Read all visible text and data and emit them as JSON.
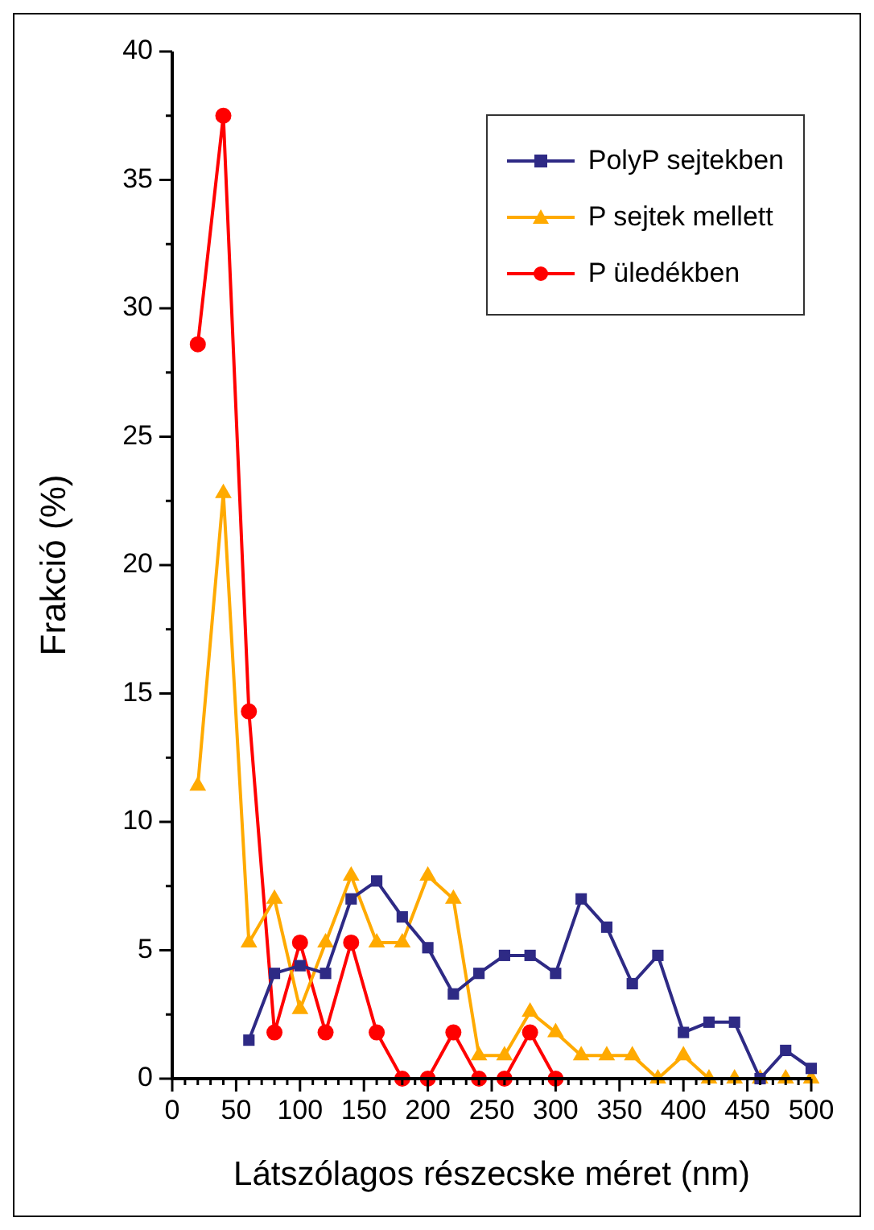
{
  "chart_data": {
    "type": "line",
    "xlabel": "Látszólagos részecske méret (nm)",
    "ylabel": "Frakció (%)",
    "xlim": [
      0,
      500
    ],
    "ylim": [
      0,
      40
    ],
    "xticks": [
      0,
      {
        "value": 10,
        "label": null
      },
      {
        "value": 20,
        "label": null
      },
      {
        "value": 30,
        "label": null
      },
      {
        "value": 40,
        "label": null
      },
      50,
      {
        "value": 60,
        "label": null
      },
      {
        "value": 70,
        "label": null
      },
      {
        "value": 80,
        "label": null
      },
      {
        "value": 90,
        "label": null
      },
      100,
      {
        "value": 110,
        "label": null
      },
      {
        "value": 120,
        "label": null
      },
      {
        "value": 130,
        "label": null
      },
      {
        "value": 140,
        "label": null
      },
      150,
      {
        "value": 160,
        "label": null
      },
      {
        "value": 170,
        "label": null
      },
      {
        "value": 180,
        "label": null
      },
      {
        "value": 190,
        "label": null
      },
      200,
      {
        "value": 210,
        "label": null
      },
      {
        "value": 220,
        "label": null
      },
      {
        "value": 230,
        "label": null
      },
      {
        "value": 240,
        "label": null
      },
      250,
      {
        "value": 260,
        "label": null
      },
      {
        "value": 270,
        "label": null
      },
      {
        "value": 280,
        "label": null
      },
      {
        "value": 290,
        "label": null
      },
      300,
      {
        "value": 310,
        "label": null
      },
      {
        "value": 320,
        "label": null
      },
      {
        "value": 330,
        "label": null
      },
      {
        "value": 340,
        "label": null
      },
      350,
      {
        "value": 360,
        "label": null
      },
      {
        "value": 370,
        "label": null
      },
      {
        "value": 380,
        "label": null
      },
      {
        "value": 390,
        "label": null
      },
      400,
      {
        "value": 410,
        "label": null
      },
      {
        "value": 420,
        "label": null
      },
      {
        "value": 430,
        "label": null
      },
      {
        "value": 440,
        "label": null
      },
      450,
      {
        "value": 460,
        "label": null
      },
      {
        "value": 470,
        "label": null
      },
      {
        "value": 480,
        "label": null
      },
      {
        "value": 490,
        "label": null
      },
      500
    ],
    "yticks": [
      0,
      {
        "value": 2.5,
        "label": null
      },
      5,
      {
        "value": 7.5,
        "label": null
      },
      10,
      {
        "value": 12.5,
        "label": null
      },
      15,
      {
        "value": 17.5,
        "label": null
      },
      20,
      {
        "value": 22.5,
        "label": null
      },
      25,
      {
        "value": 27.5,
        "label": null
      },
      30,
      {
        "value": 32.5,
        "label": null
      },
      35,
      {
        "value": 37.5,
        "label": null
      },
      40
    ],
    "grid": false,
    "legend": "top right",
    "line_style": "solid",
    "series": [
      {
        "name": "PolyP sejtekben",
        "color": "#2e2a85",
        "marker": "square",
        "x": [
          60,
          80,
          100,
          120,
          140,
          160,
          180,
          200,
          220,
          240,
          260,
          280,
          300,
          320,
          340,
          360,
          380,
          400,
          420,
          440,
          460,
          480,
          500
        ],
        "values": [
          1.5,
          4.1,
          4.4,
          4.1,
          7.0,
          7.7,
          6.3,
          5.1,
          3.3,
          4.1,
          4.8,
          4.8,
          4.1,
          7.0,
          5.9,
          3.7,
          4.8,
          1.8,
          2.2,
          2.2,
          0,
          1.1,
          0.4
        ]
      },
      {
        "name": "P sejtek mellett",
        "color": "#ffaa00",
        "marker": "triangle",
        "x": [
          20,
          40,
          60,
          80,
          100,
          120,
          140,
          160,
          180,
          200,
          220,
          240,
          260,
          280,
          300,
          320,
          340,
          360,
          380,
          400,
          420,
          440,
          460,
          480,
          500
        ],
        "values": [
          11.4,
          22.8,
          5.3,
          7.0,
          2.7,
          5.3,
          7.9,
          5.3,
          5.3,
          7.9,
          7.0,
          0.9,
          0.9,
          2.6,
          1.8,
          0.9,
          0.9,
          0.9,
          0,
          0.9,
          0,
          0,
          0,
          0,
          0
        ]
      },
      {
        "name": "P üledékben",
        "color": "#ff0000",
        "marker": "circle",
        "x": [
          20,
          40,
          60,
          80,
          100,
          120,
          140,
          160,
          180,
          200,
          220,
          240,
          260,
          280,
          300
        ],
        "values": [
          28.6,
          37.5,
          14.3,
          1.8,
          5.3,
          1.8,
          5.3,
          1.8,
          0,
          0,
          1.8,
          0,
          0,
          1.8,
          0
        ]
      }
    ]
  }
}
